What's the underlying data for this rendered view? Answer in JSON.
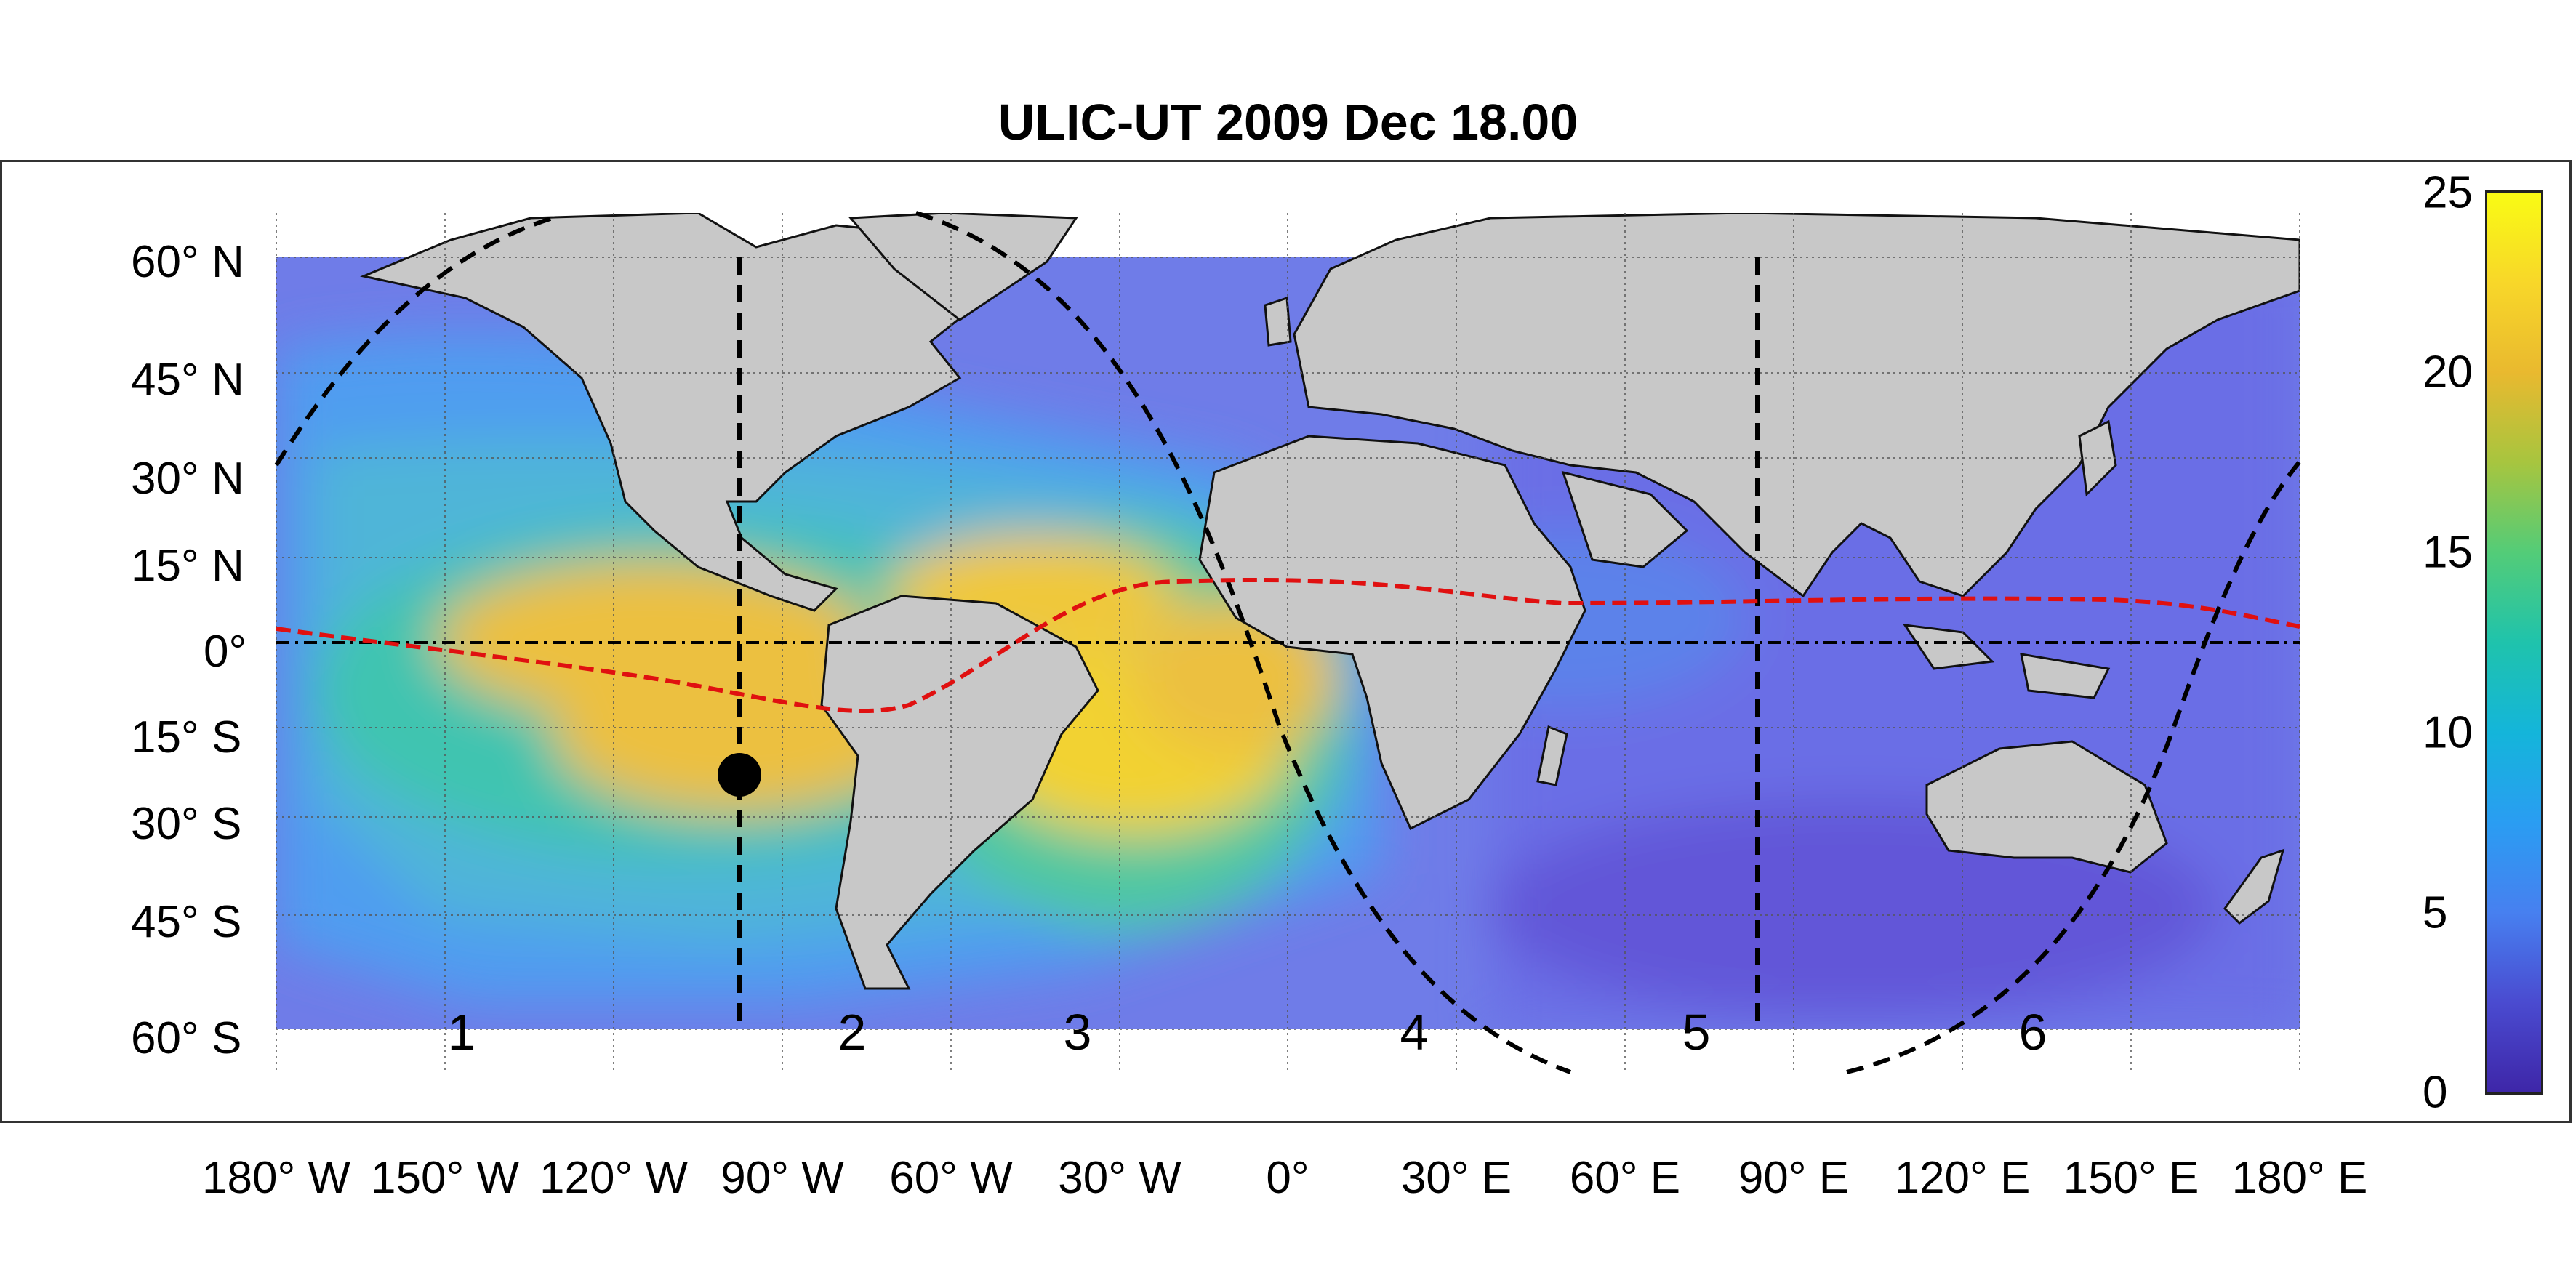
{
  "title": "ULIC-UT 2009 Dec 18.00",
  "y_axis_labels": [
    "60° N",
    "45° N",
    "30° N",
    "15° N",
    "0°",
    "15° S",
    "30° S",
    "45° S",
    "60° S"
  ],
  "x_axis_labels": [
    "180° W",
    "150° W",
    "120° W",
    "90° W",
    "60° W",
    "30° W",
    "0°",
    "30° E",
    "60° E",
    "90° E",
    "120° E",
    "150° E",
    "180° E"
  ],
  "sector_labels": [
    "1",
    "2",
    "3",
    "4",
    "5",
    "6"
  ],
  "colorbar": {
    "ticks": [
      "25",
      "20",
      "15",
      "10",
      "5",
      "0"
    ],
    "min": 0,
    "max": 25,
    "colormap": "parula"
  },
  "map": {
    "land_color": "#c8c8c8",
    "grid": true,
    "subsolar_point": {
      "lon": -97,
      "lat": -21
    },
    "terminator_style": "black dashed",
    "magnetic_equator_style": "red dashed",
    "meridian_lines_lon": [
      -97,
      83
    ],
    "colors": {
      "high": "#f5e64a",
      "mid": "#58c0b8",
      "low": "#6f74e8",
      "equator_line": "#e01010",
      "land": "#c8c8c8"
    }
  }
}
